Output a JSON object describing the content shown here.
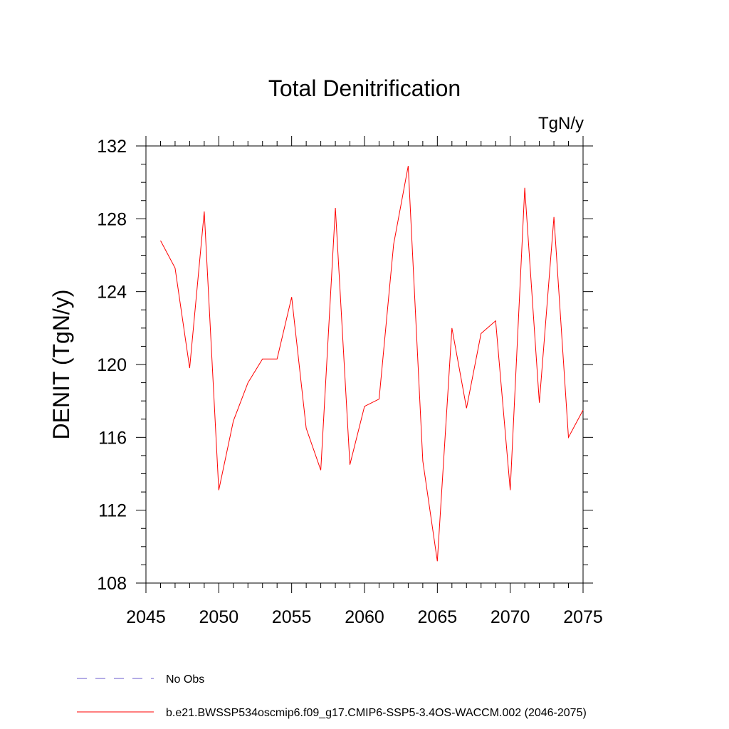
{
  "chart_data": {
    "type": "line",
    "title": "Total Denitrification",
    "units": "TgN/y",
    "xlabel": "",
    "ylabel": "DENIT  (TgN/y)",
    "xlim": [
      2045,
      2075
    ],
    "ylim": [
      108,
      132
    ],
    "x_major_ticks": [
      2045,
      2050,
      2055,
      2060,
      2065,
      2070,
      2075
    ],
    "x_minor_step": 1,
    "y_major_ticks": [
      108,
      112,
      116,
      120,
      124,
      128,
      132
    ],
    "y_minor_step": 1,
    "grid": false,
    "series": [
      {
        "name": "b.e21.BWSSP534oscmip6.f09_g17.CMIP6-SSP5-3.4OS-WACCM.002 (2046-2075)",
        "color": "#ff0000",
        "x": [
          2046,
          2047,
          2048,
          2049,
          2050,
          2051,
          2052,
          2053,
          2054,
          2055,
          2056,
          2057,
          2058,
          2059,
          2060,
          2061,
          2062,
          2063,
          2064,
          2065,
          2066,
          2067,
          2068,
          2069,
          2070,
          2071,
          2072,
          2073,
          2074,
          2075
        ],
        "y": [
          126.8,
          125.3,
          119.8,
          128.4,
          113.1,
          116.9,
          119.0,
          120.3,
          120.3,
          123.7,
          116.5,
          114.2,
          128.6,
          114.5,
          117.7,
          118.1,
          126.6,
          130.9,
          114.7,
          109.2,
          122.0,
          117.6,
          121.7,
          122.4,
          113.1,
          129.7,
          117.9,
          128.1,
          116.0,
          117.5
        ]
      }
    ],
    "legend": [
      {
        "label": "No Obs",
        "style": "dashed",
        "color": "#6a5acd"
      },
      {
        "label": "b.e21.BWSSP534oscmip6.f09_g17.CMIP6-SSP5-3.4OS-WACCM.002 (2046-2075)",
        "style": "solid",
        "color": "#ff0000"
      }
    ],
    "legend_position": "bottom-left"
  }
}
